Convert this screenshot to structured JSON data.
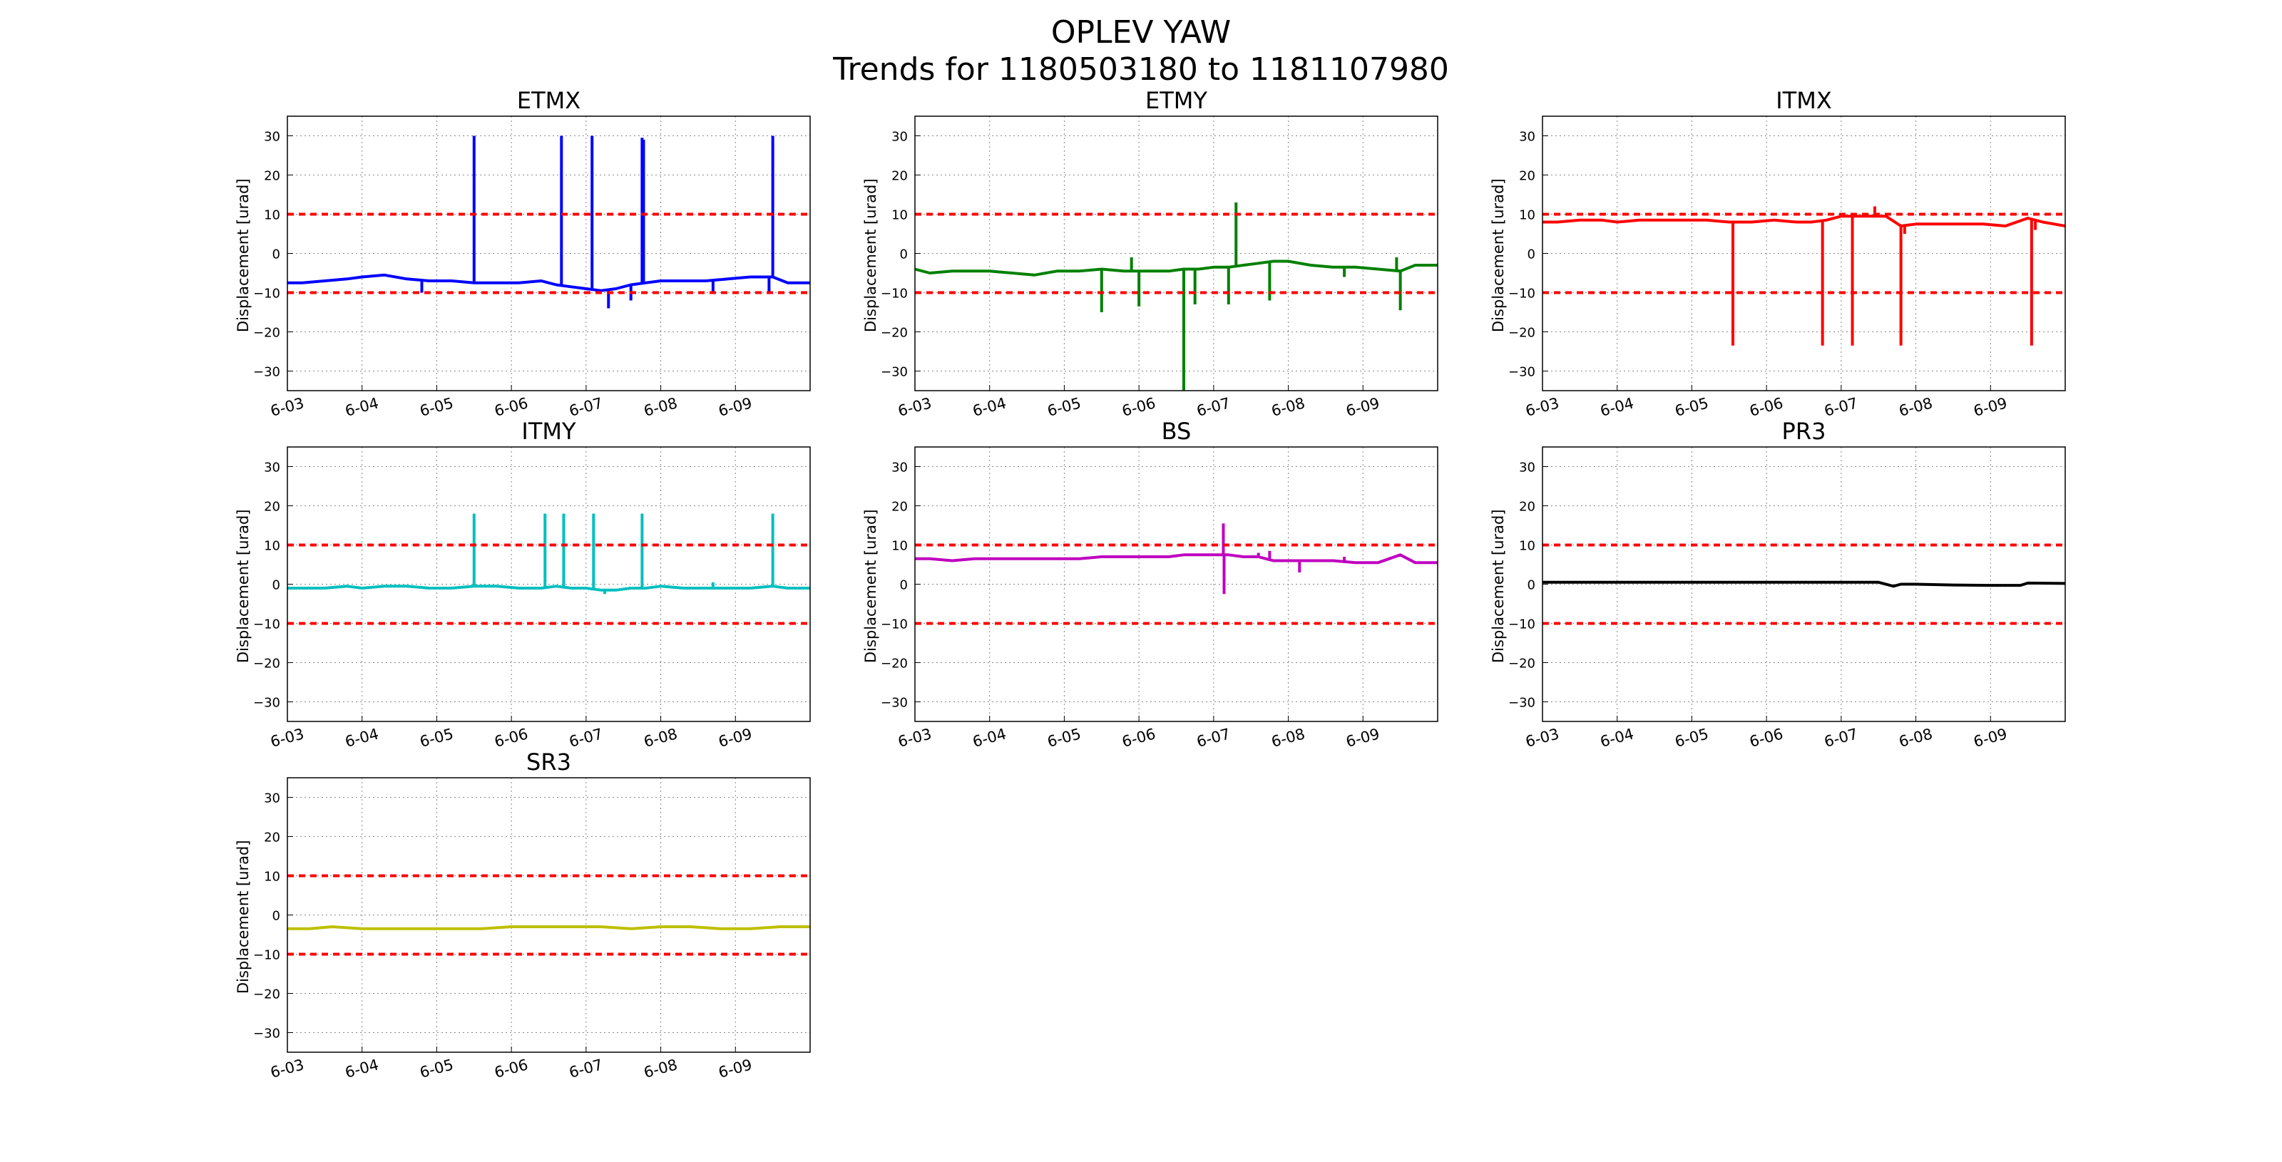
{
  "figure": {
    "title": "OPLEV YAW",
    "subtitle": "Trends for 1180503180 to 1181107980"
  },
  "chart_data": [
    {
      "type": "line",
      "title": "ETMX",
      "ylabel": "Displacement [urad]",
      "color": "#0000ff",
      "x_ticks": [
        "6-03",
        "6-04",
        "6-05",
        "6-06",
        "6-07",
        "6-08",
        "6-09"
      ],
      "xlim": [
        3.0,
        10.0
      ],
      "ylim": [
        -35,
        35
      ],
      "y_ticks": [
        -30,
        -20,
        -10,
        0,
        10,
        20,
        30
      ],
      "thresholds": [
        10,
        -10
      ],
      "threshold_color": "#ff0000",
      "grid": true,
      "series": [
        {
          "x": [
            3.0,
            3.2,
            3.5,
            3.8,
            4.0,
            4.3,
            4.6,
            4.9,
            5.2,
            5.5,
            5.8,
            6.1,
            6.4,
            6.6,
            6.8,
            7.0,
            7.2,
            7.4,
            7.6,
            7.8,
            8.0,
            8.3,
            8.6,
            8.9,
            9.2,
            9.5,
            9.7,
            10.0
          ],
          "y": [
            -7.5,
            -7.5,
            -7,
            -6.5,
            -6,
            -5.5,
            -6.5,
            -7,
            -7,
            -7.5,
            -7.5,
            -7.5,
            -7,
            -8,
            -8.5,
            -9,
            -9.5,
            -9,
            -8,
            -7.5,
            -7,
            -7,
            -7,
            -6.5,
            -6,
            -6,
            -7.5,
            -7.5
          ]
        }
      ],
      "spikes": [
        {
          "x": 4.8,
          "y": -10
        },
        {
          "x": 5.5,
          "y": 30
        },
        {
          "x": 6.67,
          "y": 30
        },
        {
          "x": 7.08,
          "y": 30
        },
        {
          "x": 7.3,
          "y": -14
        },
        {
          "x": 7.6,
          "y": -12
        },
        {
          "x": 7.75,
          "y": 29.5
        },
        {
          "x": 7.77,
          "y": 29
        },
        {
          "x": 8.7,
          "y": -10
        },
        {
          "x": 9.5,
          "y": 30
        },
        {
          "x": 9.45,
          "y": -10
        }
      ]
    },
    {
      "type": "line",
      "title": "ETMY",
      "ylabel": "Displacement [urad]",
      "color": "#008000",
      "x_ticks": [
        "6-03",
        "6-04",
        "6-05",
        "6-06",
        "6-07",
        "6-08",
        "6-09"
      ],
      "xlim": [
        3.0,
        10.0
      ],
      "ylim": [
        -35,
        35
      ],
      "y_ticks": [
        -30,
        -20,
        -10,
        0,
        10,
        20,
        30
      ],
      "thresholds": [
        10,
        -10
      ],
      "threshold_color": "#ff0000",
      "grid": true,
      "series": [
        {
          "x": [
            3.0,
            3.2,
            3.5,
            3.8,
            4.0,
            4.3,
            4.6,
            4.9,
            5.2,
            5.5,
            5.8,
            6.1,
            6.4,
            6.6,
            6.8,
            7.0,
            7.2,
            7.4,
            7.6,
            7.8,
            8.0,
            8.3,
            8.6,
            8.9,
            9.2,
            9.5,
            9.7,
            10.0
          ],
          "y": [
            -4,
            -5,
            -4.5,
            -4.5,
            -4.5,
            -5,
            -5.5,
            -4.5,
            -4.5,
            -4,
            -4.5,
            -4.5,
            -4.5,
            -4,
            -4,
            -3.5,
            -3.5,
            -3,
            -2.5,
            -2,
            -2,
            -3,
            -3.5,
            -3.5,
            -4,
            -4.5,
            -3,
            -3
          ]
        }
      ],
      "spikes": [
        {
          "x": 5.5,
          "y": -15
        },
        {
          "x": 5.9,
          "y": -1
        },
        {
          "x": 6.0,
          "y": -13.5
        },
        {
          "x": 6.6,
          "y": -35
        },
        {
          "x": 6.75,
          "y": -13
        },
        {
          "x": 7.2,
          "y": -13
        },
        {
          "x": 7.3,
          "y": 13
        },
        {
          "x": 7.75,
          "y": -12
        },
        {
          "x": 8.75,
          "y": -6
        },
        {
          "x": 9.5,
          "y": -14.5
        },
        {
          "x": 9.45,
          "y": -1
        }
      ]
    },
    {
      "type": "line",
      "title": "ITMX",
      "ylabel": "Displacement [urad]",
      "color": "#ff0000",
      "x_ticks": [
        "6-03",
        "6-04",
        "6-05",
        "6-06",
        "6-07",
        "6-08",
        "6-09"
      ],
      "xlim": [
        3.0,
        10.0
      ],
      "ylim": [
        -35,
        35
      ],
      "y_ticks": [
        -30,
        -20,
        -10,
        0,
        10,
        20,
        30
      ],
      "thresholds": [
        10,
        -10
      ],
      "threshold_color": "#ff0000",
      "grid": true,
      "series": [
        {
          "x": [
            3.0,
            3.2,
            3.5,
            3.8,
            4.0,
            4.3,
            4.6,
            4.9,
            5.2,
            5.5,
            5.8,
            6.1,
            6.4,
            6.6,
            6.8,
            7.0,
            7.2,
            7.4,
            7.6,
            7.8,
            8.0,
            8.3,
            8.6,
            8.9,
            9.2,
            9.5,
            9.7,
            10.0
          ],
          "y": [
            8,
            8,
            8.5,
            8.5,
            8,
            8.5,
            8.5,
            8.5,
            8.5,
            8,
            8,
            8.5,
            8,
            8,
            8.5,
            9.5,
            9.5,
            9.5,
            9.5,
            7,
            7.5,
            7.5,
            7.5,
            7.5,
            7,
            9,
            8,
            7
          ]
        }
      ],
      "spikes": [
        {
          "x": 5.55,
          "y": -23.5
        },
        {
          "x": 6.75,
          "y": -23.5
        },
        {
          "x": 7.15,
          "y": -23.5
        },
        {
          "x": 7.45,
          "y": 12
        },
        {
          "x": 7.8,
          "y": -23.5
        },
        {
          "x": 7.85,
          "y": 5
        },
        {
          "x": 9.55,
          "y": -23.5
        },
        {
          "x": 9.6,
          "y": 6
        }
      ]
    },
    {
      "type": "line",
      "title": "ITMY",
      "ylabel": "Displacement [urad]",
      "color": "#00bfbf",
      "x_ticks": [
        "6-03",
        "6-04",
        "6-05",
        "6-06",
        "6-07",
        "6-08",
        "6-09"
      ],
      "xlim": [
        3.0,
        10.0
      ],
      "ylim": [
        -35,
        35
      ],
      "y_ticks": [
        -30,
        -20,
        -10,
        0,
        10,
        20,
        30
      ],
      "thresholds": [
        10,
        -10
      ],
      "threshold_color": "#ff0000",
      "grid": true,
      "series": [
        {
          "x": [
            3.0,
            3.2,
            3.5,
            3.8,
            4.0,
            4.3,
            4.6,
            4.9,
            5.2,
            5.5,
            5.8,
            6.1,
            6.4,
            6.6,
            6.8,
            7.0,
            7.2,
            7.4,
            7.6,
            7.8,
            8.0,
            8.3,
            8.6,
            8.9,
            9.2,
            9.5,
            9.7,
            10.0
          ],
          "y": [
            -1,
            -1,
            -1,
            -0.5,
            -1,
            -0.5,
            -0.5,
            -1,
            -1,
            -0.5,
            -0.5,
            -1,
            -1,
            -0.5,
            -1,
            -1,
            -1.5,
            -1.5,
            -1,
            -1,
            -0.5,
            -1,
            -1,
            -1,
            -1,
            -0.5,
            -1,
            -1
          ]
        }
      ],
      "spikes": [
        {
          "x": 5.5,
          "y": 18
        },
        {
          "x": 6.45,
          "y": 18
        },
        {
          "x": 6.7,
          "y": 18
        },
        {
          "x": 7.1,
          "y": 18
        },
        {
          "x": 7.25,
          "y": -2.5
        },
        {
          "x": 7.75,
          "y": 18
        },
        {
          "x": 8.7,
          "y": 0.5
        },
        {
          "x": 9.5,
          "y": 18
        }
      ]
    },
    {
      "type": "line",
      "title": "BS",
      "ylabel": "Displacement [urad]",
      "color": "#bf00bf",
      "x_ticks": [
        "6-03",
        "6-04",
        "6-05",
        "6-06",
        "6-07",
        "6-08",
        "6-09"
      ],
      "xlim": [
        3.0,
        10.0
      ],
      "ylim": [
        -35,
        35
      ],
      "y_ticks": [
        -30,
        -20,
        -10,
        0,
        10,
        20,
        30
      ],
      "thresholds": [
        10,
        -10
      ],
      "threshold_color": "#ff0000",
      "grid": true,
      "series": [
        {
          "x": [
            3.0,
            3.2,
            3.5,
            3.8,
            4.0,
            4.3,
            4.6,
            4.9,
            5.2,
            5.5,
            5.8,
            6.1,
            6.4,
            6.6,
            6.8,
            7.0,
            7.2,
            7.4,
            7.6,
            7.8,
            8.0,
            8.3,
            8.6,
            8.9,
            9.2,
            9.5,
            9.7,
            10.0
          ],
          "y": [
            6.5,
            6.5,
            6,
            6.5,
            6.5,
            6.5,
            6.5,
            6.5,
            6.5,
            7,
            7,
            7,
            7,
            7.5,
            7.5,
            7.5,
            7.5,
            7,
            7,
            6,
            6,
            6,
            6,
            5.5,
            5.5,
            7.5,
            5.5,
            5.5
          ]
        }
      ],
      "spikes": [
        {
          "x": 7.13,
          "y": 15.5
        },
        {
          "x": 7.14,
          "y": -2.5
        },
        {
          "x": 7.6,
          "y": 8
        },
        {
          "x": 7.75,
          "y": 8.5
        },
        {
          "x": 8.15,
          "y": 3
        },
        {
          "x": 8.75,
          "y": 7
        }
      ]
    },
    {
      "type": "line",
      "title": "PR3",
      "ylabel": "Displacement [urad]",
      "color": "#000000",
      "x_ticks": [
        "6-03",
        "6-04",
        "6-05",
        "6-06",
        "6-07",
        "6-08",
        "6-09"
      ],
      "xlim": [
        3.0,
        10.0
      ],
      "ylim": [
        -35,
        35
      ],
      "y_ticks": [
        -30,
        -20,
        -10,
        0,
        10,
        20,
        30
      ],
      "thresholds": [
        10,
        -10
      ],
      "threshold_color": "#ff0000",
      "grid": true,
      "series": [
        {
          "x": [
            3.0,
            3.5,
            4.0,
            4.5,
            5.0,
            5.5,
            6.0,
            6.5,
            7.0,
            7.5,
            7.7,
            7.8,
            8.0,
            8.5,
            9.0,
            9.4,
            9.5,
            10.0
          ],
          "y": [
            0.5,
            0.5,
            0.5,
            0.5,
            0.5,
            0.5,
            0.5,
            0.5,
            0.5,
            0.5,
            -0.5,
            0,
            0,
            -0.2,
            -0.3,
            -0.3,
            0.3,
            0.2
          ]
        }
      ],
      "spikes": []
    },
    {
      "type": "line",
      "title": "SR3",
      "ylabel": "Displacement [urad]",
      "color": "#bfbf00",
      "x_ticks": [
        "6-03",
        "6-04",
        "6-05",
        "6-06",
        "6-07",
        "6-08",
        "6-09"
      ],
      "xlim": [
        3.0,
        10.0
      ],
      "ylim": [
        -35,
        35
      ],
      "y_ticks": [
        -30,
        -20,
        -10,
        0,
        10,
        20,
        30
      ],
      "thresholds": [
        10,
        -10
      ],
      "threshold_color": "#ff0000",
      "grid": true,
      "series": [
        {
          "x": [
            3.0,
            3.3,
            3.6,
            4.0,
            4.4,
            4.8,
            5.2,
            5.6,
            6.0,
            6.4,
            6.8,
            7.2,
            7.6,
            8.0,
            8.4,
            8.8,
            9.2,
            9.6,
            10.0
          ],
          "y": [
            -3.5,
            -3.5,
            -3,
            -3.5,
            -3.5,
            -3.5,
            -3.5,
            -3.5,
            -3,
            -3,
            -3,
            -3,
            -3.5,
            -3,
            -3,
            -3.5,
            -3.5,
            -3,
            -3
          ]
        }
      ],
      "spikes": []
    }
  ]
}
